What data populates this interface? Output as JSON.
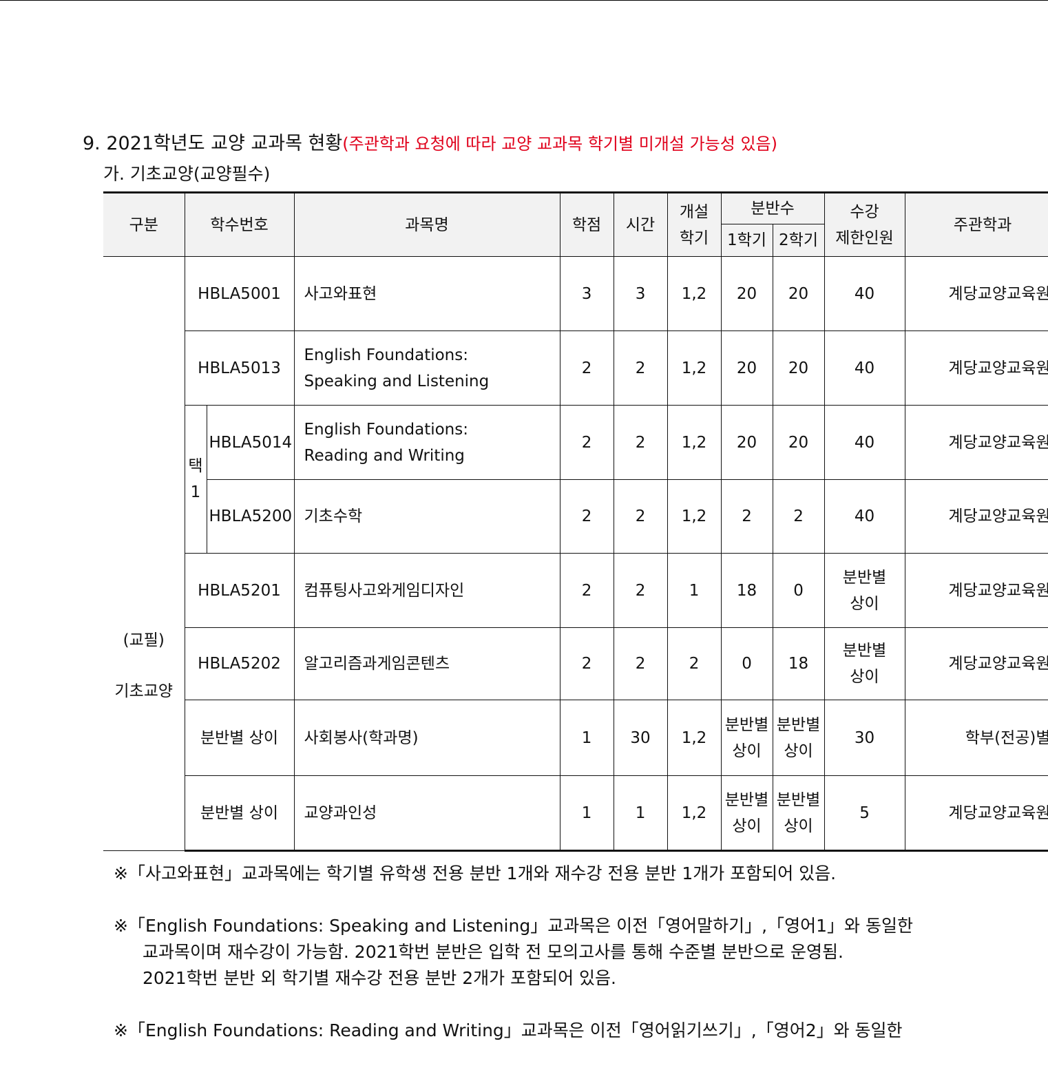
{
  "heading": {
    "title": "9. 2021학년도 교양 교과목 현황",
    "note": "(주관학과 요청에 따라 교양 교과목 학기별 미개설 가능성 있음)"
  },
  "subheading": "가. 기초교양(교양필수)",
  "table": {
    "headers": {
      "category": "구분",
      "code": "학수번호",
      "name": "과목명",
      "credit": "학점",
      "hours": "시간",
      "semester_top": "개설",
      "semester_bottom": "학기",
      "sections": "분반수",
      "sem1": "1학기",
      "sem2": "2학기",
      "limit_top": "수강",
      "limit_bottom": "제한인원",
      "dept": "주관학과"
    },
    "category_top": "(교필)",
    "category_bottom": "기초교양",
    "choose_top": "택",
    "choose_bottom": "1",
    "rows": [
      {
        "code": "HBLA5001",
        "name1": "사고와표현",
        "name2": "",
        "credit": "3",
        "hours": "3",
        "semester": "1,2",
        "s1a": "20",
        "s1b": "",
        "s2a": "20",
        "s2b": "",
        "limit1": "40",
        "limit2": "",
        "dept": "계당교양교육원"
      },
      {
        "code": "HBLA5013",
        "name1": "English Foundations:",
        "name2": "Speaking and Listening",
        "credit": "2",
        "hours": "2",
        "semester": "1,2",
        "s1a": "20",
        "s1b": "",
        "s2a": "20",
        "s2b": "",
        "limit1": "40",
        "limit2": "",
        "dept": "계당교양교육원"
      },
      {
        "code": "HBLA5014",
        "name1": "English Foundations:",
        "name2": "Reading and Writing",
        "credit": "2",
        "hours": "2",
        "semester": "1,2",
        "s1a": "20",
        "s1b": "",
        "s2a": "20",
        "s2b": "",
        "limit1": "40",
        "limit2": "",
        "dept": "계당교양교육원"
      },
      {
        "code": "HBLA5200",
        "name1": "기초수학",
        "name2": "",
        "credit": "2",
        "hours": "2",
        "semester": "1,2",
        "s1a": "2",
        "s1b": "",
        "s2a": "2",
        "s2b": "",
        "limit1": "40",
        "limit2": "",
        "dept": "계당교양교육원"
      },
      {
        "code": "HBLA5201",
        "name1": "컴퓨팅사고와게임디자인",
        "name2": "",
        "credit": "2",
        "hours": "2",
        "semester": "1",
        "s1a": "18",
        "s1b": "",
        "s2a": "0",
        "s2b": "",
        "limit1": "분반별",
        "limit2": "상이",
        "dept": "계당교양교육원"
      },
      {
        "code": "HBLA5202",
        "name1": "알고리즘과게임콘텐츠",
        "name2": "",
        "credit": "2",
        "hours": "2",
        "semester": "2",
        "s1a": "0",
        "s1b": "",
        "s2a": "18",
        "s2b": "",
        "limit1": "분반별",
        "limit2": "상이",
        "dept": "계당교양교육원"
      },
      {
        "code": "분반별 상이",
        "name1": "사회봉사(학과명)",
        "name2": "",
        "credit": "1",
        "hours": "30",
        "semester": "1,2",
        "s1a": "분반별",
        "s1b": "상이",
        "s2a": "분반별",
        "s2b": "상이",
        "limit1": "30",
        "limit2": "",
        "dept": "학부(전공)별"
      },
      {
        "code": "분반별 상이",
        "name1": "교양과인성",
        "name2": "",
        "credit": "1",
        "hours": "1",
        "semester": "1,2",
        "s1a": "분반별",
        "s1b": "상이",
        "s2a": "분반별",
        "s2b": "상이",
        "limit1": "5",
        "limit2": "",
        "dept": "계당교양교육원"
      }
    ]
  },
  "notes": [
    {
      "line1": "※「사고와표현」교과목에는 학기별 유학생 전용 분반 1개와 재수강 전용 분반 1개가 포함되어 있음.",
      "line2": "",
      "line3": ""
    },
    {
      "line1": "※「English Foundations: Speaking and Listening」교과목은 이전「영어말하기」,「영어1」와 동일한",
      "line2": "교과목이며 재수강이 가능함. 2021학번 분반은 입학 전 모의고사를 통해 수준별 분반으로 운영됨.",
      "line3": "2021학번 분반 외 학기별 재수강 전용 분반 2개가 포함되어 있음."
    },
    {
      "line1": "※「English Foundations: Reading and Writing」교과목은 이전「영어읽기쓰기」,「영어2」와 동일한",
      "line2": "",
      "line3": ""
    }
  ]
}
